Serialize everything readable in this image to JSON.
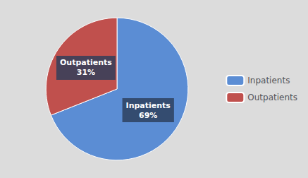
{
  "chart_data": {
    "type": "pie",
    "categories": [
      "Inpatients",
      "Outpatients"
    ],
    "values": [
      69,
      31
    ],
    "value_labels": [
      "69%",
      "31%"
    ],
    "colors": [
      "#5B8DD4",
      "#C0504D"
    ],
    "data_labels": true,
    "legend": "right"
  }
}
